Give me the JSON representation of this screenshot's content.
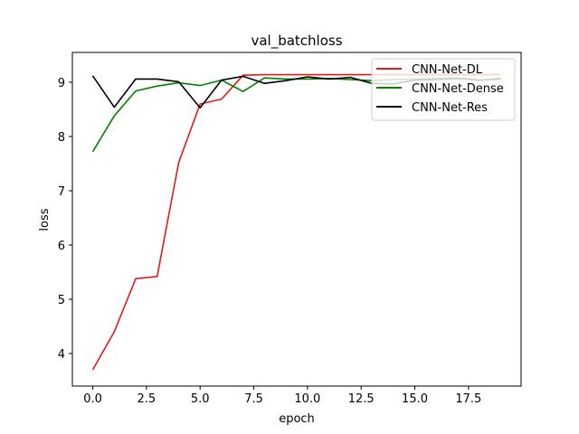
{
  "chart_data": {
    "type": "line",
    "title": "val_batchloss",
    "xlabel": "epoch",
    "ylabel": "loss",
    "xlim": [
      -0.95,
      19.95
    ],
    "ylim": [
      3.4,
      9.55
    ],
    "xticks": [
      0.0,
      2.5,
      5.0,
      7.5,
      10.0,
      12.5,
      15.0,
      17.5
    ],
    "xtick_labels": [
      "0.0",
      "2.5",
      "5.0",
      "7.5",
      "10.0",
      "12.5",
      "15.0",
      "17.5"
    ],
    "yticks": [
      4,
      5,
      6,
      7,
      8,
      9
    ],
    "ytick_labels": [
      "4",
      "5",
      "6",
      "7",
      "8",
      "9"
    ],
    "grid": false,
    "legend_position": "top-right",
    "x": [
      0,
      1,
      2,
      3,
      4,
      5,
      6,
      7,
      8,
      9,
      10,
      11,
      12,
      13,
      14,
      15,
      16,
      17,
      18,
      19
    ],
    "series": [
      {
        "name": "CNN-Net-DL",
        "color": "#e31a1c",
        "values": [
          3.7,
          4.4,
          5.38,
          5.42,
          7.52,
          8.6,
          8.69,
          9.13,
          9.14,
          9.14,
          9.14,
          9.14,
          9.14,
          9.14,
          9.14,
          9.14,
          9.14,
          9.14,
          9.14,
          9.14
        ]
      },
      {
        "name": "CNN-Net-Dense",
        "color": "#008000",
        "values": [
          7.72,
          8.38,
          8.84,
          8.93,
          8.99,
          8.94,
          9.04,
          8.83,
          9.08,
          9.06,
          9.06,
          9.07,
          9.05,
          9.03,
          9.05,
          9.06,
          9.07,
          9.08,
          9.03,
          9.08
        ]
      },
      {
        "name": "CNN-Net-Res",
        "color": "#000000",
        "values": [
          9.12,
          8.54,
          9.06,
          9.06,
          9.01,
          8.53,
          9.04,
          9.11,
          8.98,
          9.03,
          9.1,
          9.06,
          9.09,
          8.98,
          8.97,
          9.04,
          9.05,
          9.07,
          9.04,
          9.06
        ]
      }
    ]
  }
}
